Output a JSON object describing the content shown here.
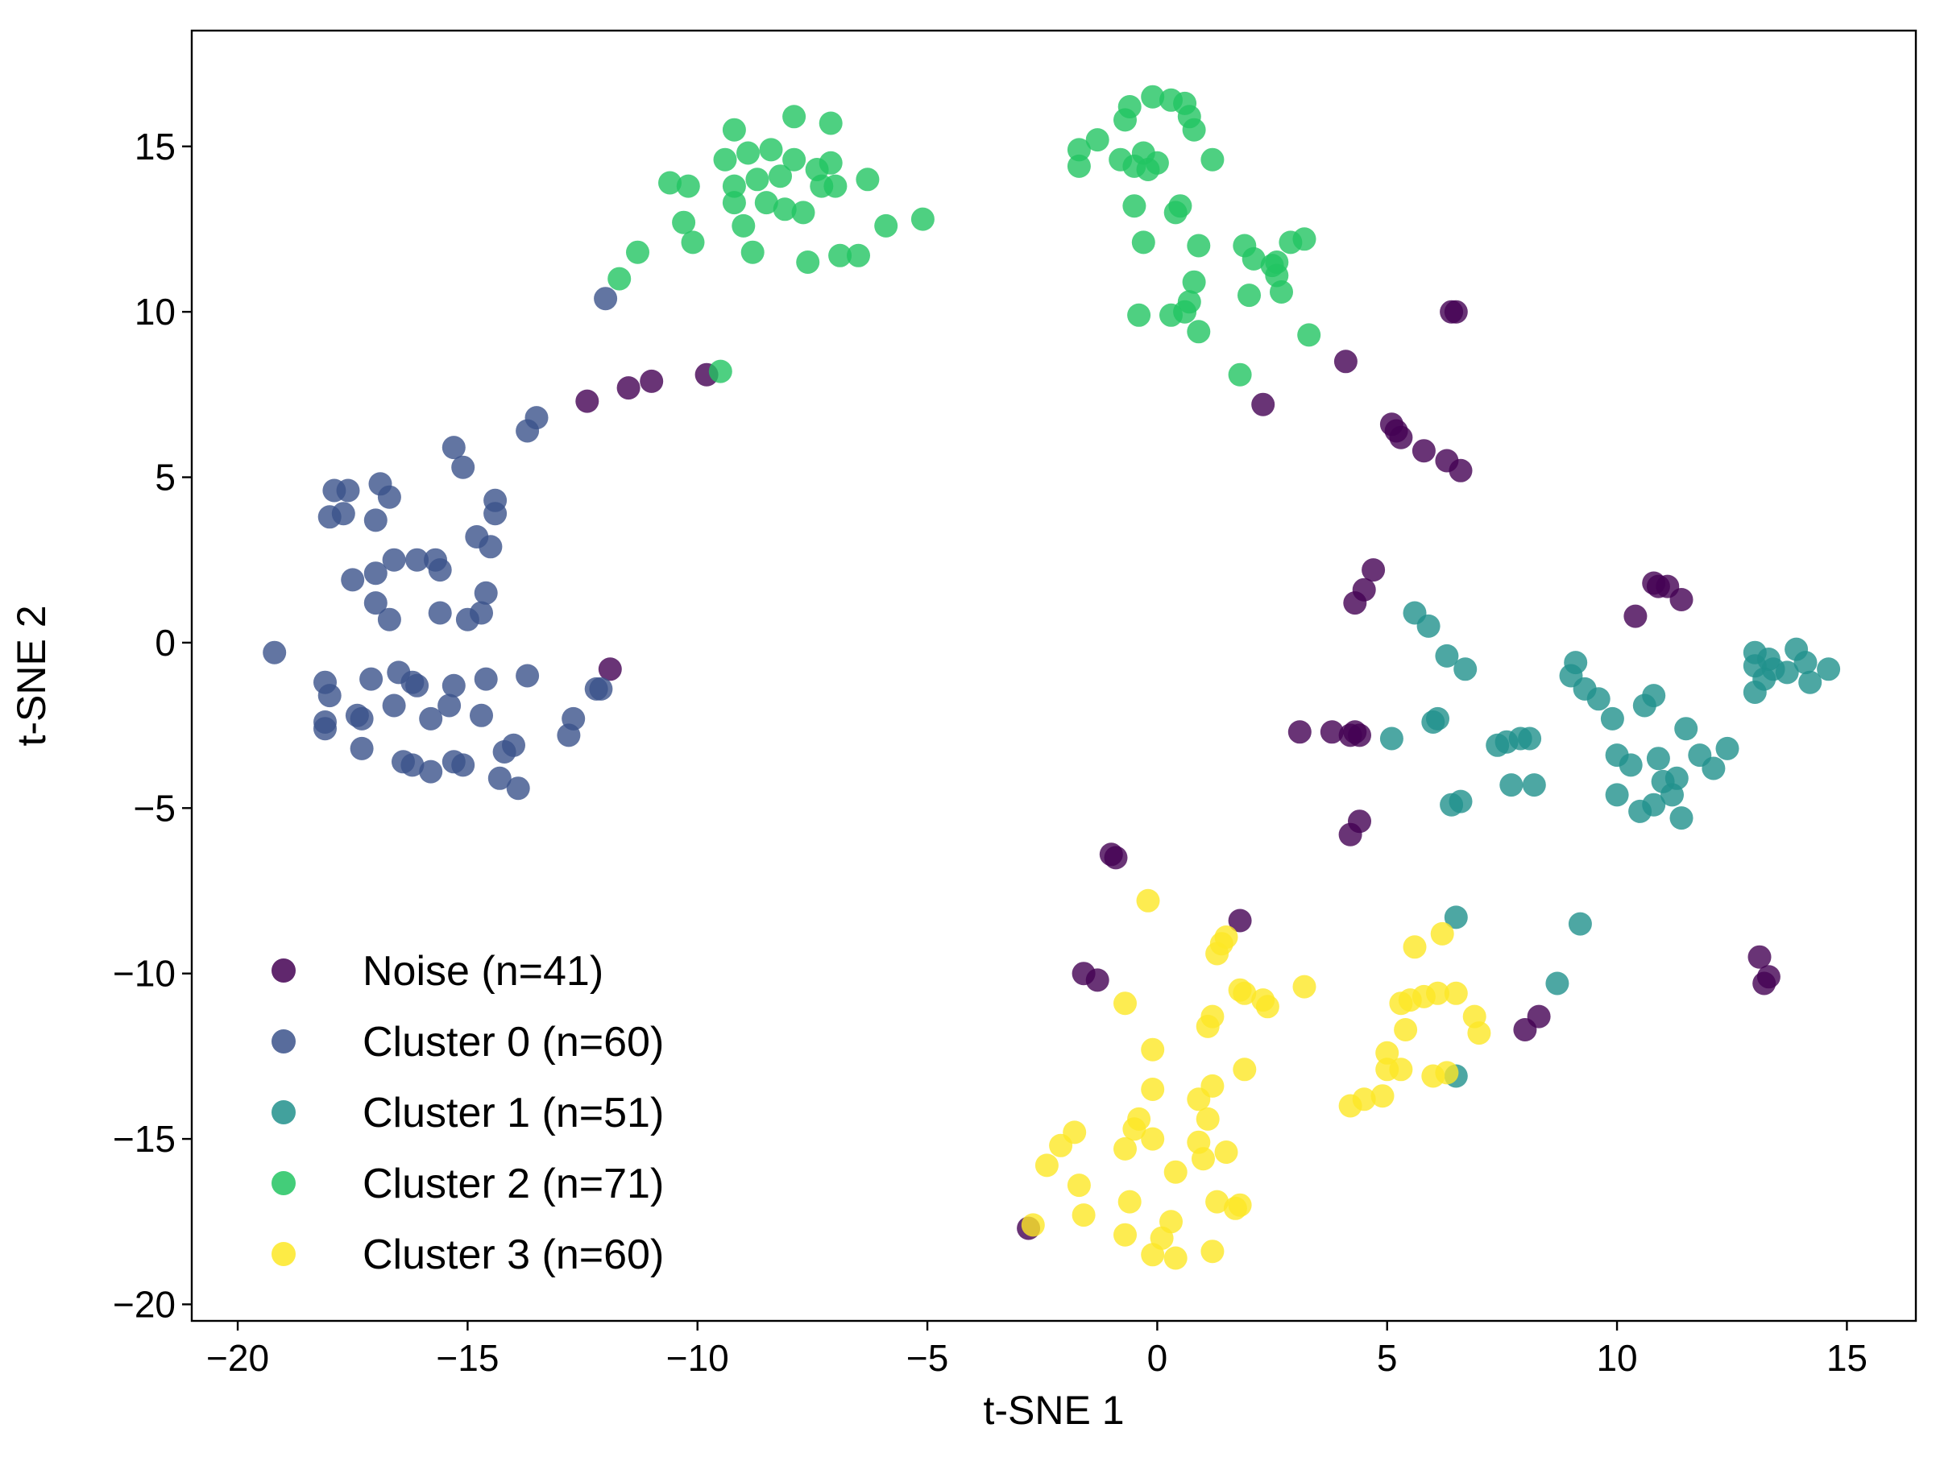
{
  "chart_data": {
    "type": "scatter",
    "xlabel": "t-SNE 1",
    "ylabel": "t-SNE 2",
    "xlim": [
      -21,
      16.5
    ],
    "ylim": [
      -20.5,
      18.5
    ],
    "xticks": [
      -20,
      -15,
      -10,
      -5,
      0,
      5,
      10,
      15
    ],
    "yticks": [
      -20,
      -15,
      -10,
      -5,
      0,
      5,
      10,
      15
    ],
    "xtick_labels": [
      "−20",
      "−15",
      "−10",
      "−5",
      "0",
      "5",
      "10",
      "15"
    ],
    "ytick_labels": [
      "−20",
      "−15",
      "−10",
      "−5",
      "0",
      "5",
      "10",
      "15"
    ],
    "grid": false,
    "legend_position": "bottom-left",
    "series": [
      {
        "name": "Noise (n=41)",
        "color": "#440154",
        "points": [
          [
            -12.4,
            7.3
          ],
          [
            -11.5,
            7.7
          ],
          [
            -11.0,
            7.9
          ],
          [
            -9.8,
            8.1
          ],
          [
            -11.9,
            -0.8
          ],
          [
            4.1,
            8.5
          ],
          [
            6.5,
            10.0
          ],
          [
            2.3,
            7.2
          ],
          [
            5.1,
            6.6
          ],
          [
            5.3,
            6.2
          ],
          [
            5.8,
            5.8
          ],
          [
            6.3,
            5.5
          ],
          [
            6.6,
            5.2
          ],
          [
            4.7,
            2.2
          ],
          [
            4.5,
            1.6
          ],
          [
            4.3,
            1.2
          ],
          [
            3.1,
            -2.7
          ],
          [
            3.8,
            -2.7
          ],
          [
            4.2,
            -2.8
          ],
          [
            4.4,
            -2.8
          ],
          [
            4.4,
            -5.4
          ],
          [
            4.2,
            -5.8
          ],
          [
            10.8,
            1.8
          ],
          [
            11.1,
            1.7
          ],
          [
            11.4,
            1.3
          ],
          [
            10.4,
            0.8
          ],
          [
            -1.0,
            -6.4
          ],
          [
            -0.9,
            -6.5
          ],
          [
            1.8,
            -8.4
          ],
          [
            -1.6,
            -10.0
          ],
          [
            -1.3,
            -10.2
          ],
          [
            8.3,
            -11.3
          ],
          [
            8.0,
            -11.7
          ],
          [
            13.1,
            -9.5
          ],
          [
            13.3,
            -10.1
          ],
          [
            13.2,
            -10.3
          ],
          [
            -2.8,
            -17.7
          ],
          [
            6.4,
            10.0
          ],
          [
            4.3,
            -2.7
          ],
          [
            5.2,
            6.4
          ],
          [
            10.9,
            1.7
          ]
        ]
      },
      {
        "name": "Cluster 0 (n=60)",
        "color": "#3b528b",
        "points": [
          [
            -12.0,
            10.4
          ],
          [
            -13.5,
            6.8
          ],
          [
            -13.7,
            6.4
          ],
          [
            -15.3,
            5.9
          ],
          [
            -15.1,
            5.3
          ],
          [
            -17.9,
            4.6
          ],
          [
            -17.6,
            4.6
          ],
          [
            -16.9,
            4.8
          ],
          [
            -16.7,
            4.4
          ],
          [
            -18.0,
            3.8
          ],
          [
            -17.7,
            3.9
          ],
          [
            -17.0,
            3.7
          ],
          [
            -14.4,
            4.3
          ],
          [
            -14.4,
            3.9
          ],
          [
            -14.8,
            3.2
          ],
          [
            -14.5,
            2.9
          ],
          [
            -17.5,
            1.9
          ],
          [
            -17.0,
            2.1
          ],
          [
            -16.6,
            2.5
          ],
          [
            -16.1,
            2.5
          ],
          [
            -15.7,
            2.5
          ],
          [
            -15.6,
            2.2
          ],
          [
            -17.0,
            1.2
          ],
          [
            -16.7,
            0.7
          ],
          [
            -15.6,
            0.9
          ],
          [
            -15.0,
            0.7
          ],
          [
            -14.7,
            0.9
          ],
          [
            -14.6,
            1.5
          ],
          [
            -19.2,
            -0.3
          ],
          [
            -18.1,
            -1.2
          ],
          [
            -18.0,
            -1.6
          ],
          [
            -17.1,
            -1.1
          ],
          [
            -16.5,
            -0.9
          ],
          [
            -16.2,
            -1.2
          ],
          [
            -16.1,
            -1.3
          ],
          [
            -15.3,
            -1.3
          ],
          [
            -14.6,
            -1.1
          ],
          [
            -13.7,
            -1.0
          ],
          [
            -12.2,
            -1.4
          ],
          [
            -12.1,
            -1.4
          ],
          [
            -18.1,
            -2.4
          ],
          [
            -18.1,
            -2.6
          ],
          [
            -17.4,
            -2.2
          ],
          [
            -17.3,
            -2.3
          ],
          [
            -16.6,
            -1.9
          ],
          [
            -15.8,
            -2.3
          ],
          [
            -15.4,
            -1.9
          ],
          [
            -14.7,
            -2.2
          ],
          [
            -12.7,
            -2.3
          ],
          [
            -12.8,
            -2.8
          ],
          [
            -17.3,
            -3.2
          ],
          [
            -16.4,
            -3.6
          ],
          [
            -16.2,
            -3.7
          ],
          [
            -15.8,
            -3.9
          ],
          [
            -15.3,
            -3.6
          ],
          [
            -15.1,
            -3.7
          ],
          [
            -14.2,
            -3.3
          ],
          [
            -14.0,
            -3.1
          ],
          [
            -14.3,
            -4.1
          ],
          [
            -13.9,
            -4.4
          ]
        ]
      },
      {
        "name": "Cluster 1 (n=51)",
        "color": "#21918c",
        "points": [
          [
            5.6,
            0.9
          ],
          [
            5.9,
            0.5
          ],
          [
            6.3,
            -0.4
          ],
          [
            6.7,
            -0.8
          ],
          [
            5.1,
            -2.9
          ],
          [
            6.0,
            -2.4
          ],
          [
            6.1,
            -2.3
          ],
          [
            7.4,
            -3.1
          ],
          [
            7.6,
            -3.0
          ],
          [
            7.9,
            -2.9
          ],
          [
            8.1,
            -2.9
          ],
          [
            7.7,
            -4.3
          ],
          [
            8.2,
            -4.3
          ],
          [
            6.4,
            -4.9
          ],
          [
            6.6,
            -4.8
          ],
          [
            9.1,
            -0.6
          ],
          [
            9.0,
            -1.0
          ],
          [
            9.3,
            -1.4
          ],
          [
            9.6,
            -1.7
          ],
          [
            9.9,
            -2.3
          ],
          [
            10.0,
            -3.4
          ],
          [
            10.3,
            -3.7
          ],
          [
            10.0,
            -4.6
          ],
          [
            10.5,
            -5.1
          ],
          [
            10.8,
            -4.9
          ],
          [
            11.0,
            -4.2
          ],
          [
            11.2,
            -4.6
          ],
          [
            11.4,
            -5.3
          ],
          [
            11.3,
            -4.1
          ],
          [
            10.6,
            -1.9
          ],
          [
            10.8,
            -1.6
          ],
          [
            10.9,
            -3.5
          ],
          [
            11.5,
            -2.6
          ],
          [
            11.8,
            -3.4
          ],
          [
            12.1,
            -3.8
          ],
          [
            12.4,
            -3.2
          ],
          [
            13.0,
            -0.3
          ],
          [
            13.3,
            -0.5
          ],
          [
            13.0,
            -0.7
          ],
          [
            13.4,
            -0.8
          ],
          [
            13.2,
            -1.1
          ],
          [
            13.0,
            -1.5
          ],
          [
            13.9,
            -0.2
          ],
          [
            14.1,
            -0.6
          ],
          [
            14.2,
            -1.2
          ],
          [
            14.6,
            -0.8
          ],
          [
            6.5,
            -8.3
          ],
          [
            9.2,
            -8.5
          ],
          [
            8.7,
            -10.3
          ],
          [
            6.5,
            -13.1
          ],
          [
            13.7,
            -0.9
          ]
        ]
      },
      {
        "name": "Cluster 2 (n=71)",
        "color": "#22c461",
        "points": [
          [
            -11.3,
            11.8
          ],
          [
            -11.7,
            11.0
          ],
          [
            -10.6,
            13.9
          ],
          [
            -10.2,
            13.8
          ],
          [
            -10.3,
            12.7
          ],
          [
            -10.1,
            12.1
          ],
          [
            -9.4,
            14.6
          ],
          [
            -9.2,
            13.8
          ],
          [
            -9.2,
            13.3
          ],
          [
            -9.0,
            12.6
          ],
          [
            -8.8,
            11.8
          ],
          [
            -9.2,
            15.5
          ],
          [
            -8.9,
            14.8
          ],
          [
            -8.7,
            14.0
          ],
          [
            -8.5,
            13.3
          ],
          [
            -8.4,
            14.9
          ],
          [
            -8.2,
            14.1
          ],
          [
            -8.1,
            13.1
          ],
          [
            -7.9,
            15.9
          ],
          [
            -7.9,
            14.6
          ],
          [
            -7.7,
            13.0
          ],
          [
            -7.6,
            11.5
          ],
          [
            -7.4,
            14.3
          ],
          [
            -7.3,
            13.8
          ],
          [
            -7.1,
            15.7
          ],
          [
            -7.1,
            14.5
          ],
          [
            -7.0,
            13.8
          ],
          [
            -6.9,
            11.7
          ],
          [
            -6.5,
            11.7
          ],
          [
            -6.3,
            14.0
          ],
          [
            -5.9,
            12.6
          ],
          [
            -5.1,
            12.8
          ],
          [
            -9.5,
            8.2
          ],
          [
            -1.7,
            14.9
          ],
          [
            -1.7,
            14.4
          ],
          [
            -1.3,
            15.2
          ],
          [
            -0.8,
            14.6
          ],
          [
            -0.7,
            15.8
          ],
          [
            -0.6,
            16.2
          ],
          [
            -0.5,
            14.4
          ],
          [
            -0.3,
            14.8
          ],
          [
            -0.2,
            14.3
          ],
          [
            -0.5,
            13.2
          ],
          [
            -0.3,
            12.1
          ],
          [
            -0.1,
            16.5
          ],
          [
            0.3,
            16.4
          ],
          [
            0.6,
            16.3
          ],
          [
            0.7,
            15.9
          ],
          [
            0.8,
            15.5
          ],
          [
            0.4,
            13.0
          ],
          [
            0.5,
            13.2
          ],
          [
            0.9,
            12.0
          ],
          [
            1.2,
            14.6
          ],
          [
            0.8,
            10.9
          ],
          [
            0.7,
            10.3
          ],
          [
            0.6,
            10.0
          ],
          [
            0.9,
            9.4
          ],
          [
            0.3,
            9.9
          ],
          [
            -0.4,
            9.9
          ],
          [
            1.9,
            12.0
          ],
          [
            2.1,
            11.6
          ],
          [
            2.5,
            11.4
          ],
          [
            2.6,
            11.1
          ],
          [
            2.9,
            12.1
          ],
          [
            3.2,
            12.2
          ],
          [
            2.7,
            10.6
          ],
          [
            2.0,
            10.5
          ],
          [
            3.3,
            9.3
          ],
          [
            1.8,
            8.1
          ],
          [
            2.6,
            11.5
          ],
          [
            0.0,
            14.5
          ]
        ]
      },
      {
        "name": "Cluster 3 (n=60)",
        "color": "#fde725",
        "points": [
          [
            -0.2,
            -7.8
          ],
          [
            1.3,
            -9.4
          ],
          [
            1.4,
            -9.1
          ],
          [
            1.5,
            -8.9
          ],
          [
            1.8,
            -10.5
          ],
          [
            1.9,
            -10.6
          ],
          [
            2.3,
            -10.8
          ],
          [
            2.4,
            -11.0
          ],
          [
            3.2,
            -10.4
          ],
          [
            -0.7,
            -10.9
          ],
          [
            1.1,
            -11.6
          ],
          [
            1.2,
            -11.3
          ],
          [
            -0.1,
            -12.3
          ],
          [
            1.9,
            -12.9
          ],
          [
            -0.1,
            -13.5
          ],
          [
            0.9,
            -13.8
          ],
          [
            1.2,
            -13.4
          ],
          [
            1.1,
            -14.4
          ],
          [
            -0.4,
            -14.4
          ],
          [
            -0.5,
            -14.7
          ],
          [
            -0.7,
            -15.3
          ],
          [
            -0.1,
            -15.0
          ],
          [
            0.9,
            -15.1
          ],
          [
            1.0,
            -15.6
          ],
          [
            1.5,
            -15.4
          ],
          [
            0.4,
            -16.0
          ],
          [
            -1.8,
            -14.8
          ],
          [
            -2.1,
            -15.2
          ],
          [
            -2.4,
            -15.8
          ],
          [
            -1.7,
            -16.4
          ],
          [
            -1.6,
            -17.3
          ],
          [
            -0.6,
            -16.9
          ],
          [
            0.3,
            -17.5
          ],
          [
            0.1,
            -18.0
          ],
          [
            -0.1,
            -18.5
          ],
          [
            0.4,
            -18.6
          ],
          [
            -0.7,
            -17.9
          ],
          [
            1.3,
            -16.9
          ],
          [
            1.8,
            -17.0
          ],
          [
            1.7,
            -17.1
          ],
          [
            1.2,
            -18.4
          ],
          [
            -2.7,
            -17.6
          ],
          [
            5.3,
            -10.9
          ],
          [
            5.5,
            -10.8
          ],
          [
            5.8,
            -10.7
          ],
          [
            6.1,
            -10.6
          ],
          [
            6.5,
            -10.6
          ],
          [
            6.9,
            -11.3
          ],
          [
            7.0,
            -11.8
          ],
          [
            5.4,
            -11.7
          ],
          [
            5.0,
            -12.4
          ],
          [
            5.0,
            -12.9
          ],
          [
            5.3,
            -12.9
          ],
          [
            6.0,
            -13.1
          ],
          [
            6.3,
            -13.0
          ],
          [
            4.2,
            -14.0
          ],
          [
            4.5,
            -13.8
          ],
          [
            4.9,
            -13.7
          ],
          [
            5.6,
            -9.2
          ],
          [
            6.2,
            -8.8
          ]
        ]
      }
    ]
  }
}
